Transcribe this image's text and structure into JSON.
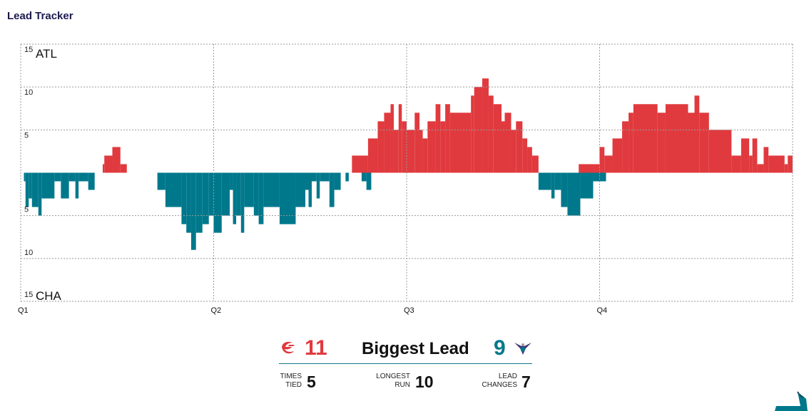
{
  "header": {
    "title": "Lead Tracker"
  },
  "colors": {
    "atl": "#e03a3e",
    "cha": "#00788c",
    "grid": "#9a9a9a",
    "title": "#1d1a4f"
  },
  "chart_data": {
    "type": "area",
    "x_domain": [
      0,
      48
    ],
    "xlabel": "",
    "quarters": [
      {
        "label": "Q1",
        "start": 0
      },
      {
        "label": "Q2",
        "start": 12
      },
      {
        "label": "Q3",
        "start": 24
      },
      {
        "label": "Q4",
        "start": 36
      }
    ],
    "y_range": [
      -15,
      15
    ],
    "y_ticks": [
      {
        "value": 15,
        "label": "15"
      },
      {
        "value": 10,
        "label": "10"
      },
      {
        "value": 5,
        "label": "5"
      },
      {
        "value": -5,
        "label": "5"
      },
      {
        "value": -10,
        "label": "10"
      },
      {
        "value": -15,
        "label": "15"
      }
    ],
    "team_labels": {
      "top": "ATL",
      "bottom": "CHA"
    },
    "grid": true,
    "series": [
      {
        "team": "ATL",
        "segments": [
          [
            5.1,
            5.2,
            1
          ],
          [
            5.2,
            5.7,
            2
          ],
          [
            5.7,
            6.2,
            3
          ],
          [
            6.2,
            6.6,
            1
          ],
          [
            20.6,
            21.6,
            2
          ],
          [
            21.6,
            22.2,
            4
          ],
          [
            22.2,
            22.6,
            6
          ],
          [
            22.6,
            23.0,
            7
          ],
          [
            23.0,
            23.2,
            8
          ],
          [
            23.2,
            23.5,
            5
          ],
          [
            23.5,
            23.7,
            8
          ],
          [
            23.7,
            24.0,
            6
          ],
          [
            24.0,
            24.5,
            5
          ],
          [
            24.5,
            24.8,
            7
          ],
          [
            24.8,
            25.0,
            5
          ],
          [
            25.0,
            25.3,
            4
          ],
          [
            25.3,
            25.8,
            6
          ],
          [
            25.8,
            26.1,
            8
          ],
          [
            26.1,
            26.4,
            6
          ],
          [
            26.4,
            26.7,
            8
          ],
          [
            26.7,
            28.0,
            7
          ],
          [
            28.0,
            28.2,
            9
          ],
          [
            28.2,
            28.7,
            10
          ],
          [
            28.7,
            29.1,
            11
          ],
          [
            29.1,
            29.4,
            9
          ],
          [
            29.4,
            29.9,
            8
          ],
          [
            29.9,
            30.1,
            6
          ],
          [
            30.1,
            30.5,
            7
          ],
          [
            30.5,
            30.8,
            5
          ],
          [
            30.8,
            31.2,
            6
          ],
          [
            31.2,
            31.5,
            4
          ],
          [
            31.5,
            31.8,
            3
          ],
          [
            31.8,
            32.2,
            2
          ],
          [
            34.7,
            36.0,
            1
          ],
          [
            36.0,
            36.3,
            3
          ],
          [
            36.3,
            36.8,
            2
          ],
          [
            36.8,
            37.4,
            4
          ],
          [
            37.4,
            37.8,
            6
          ],
          [
            37.8,
            38.1,
            7
          ],
          [
            38.1,
            39.6,
            8
          ],
          [
            39.6,
            40.1,
            7
          ],
          [
            40.1,
            41.5,
            8
          ],
          [
            41.5,
            41.9,
            7
          ],
          [
            41.9,
            42.2,
            9
          ],
          [
            42.2,
            42.8,
            7
          ],
          [
            42.8,
            44.2,
            5
          ],
          [
            44.2,
            44.8,
            2
          ],
          [
            44.8,
            45.3,
            4
          ],
          [
            45.3,
            45.5,
            2
          ],
          [
            45.5,
            45.8,
            4
          ],
          [
            45.8,
            46.2,
            1
          ],
          [
            46.2,
            46.5,
            3
          ],
          [
            46.5,
            47.5,
            2
          ],
          [
            47.5,
            47.7,
            1
          ],
          [
            47.7,
            48.0,
            2
          ]
        ]
      },
      {
        "team": "CHA",
        "segments": [
          [
            0.2,
            0.3,
            -1
          ],
          [
            0.3,
            0.5,
            -4
          ],
          [
            0.5,
            0.7,
            -3
          ],
          [
            0.7,
            1.1,
            -4
          ],
          [
            1.1,
            1.3,
            -5
          ],
          [
            1.3,
            2.1,
            -3
          ],
          [
            2.1,
            2.5,
            -1
          ],
          [
            2.5,
            3.0,
            -3
          ],
          [
            3.0,
            3.4,
            -1
          ],
          [
            3.4,
            3.6,
            -3
          ],
          [
            3.6,
            4.2,
            -1
          ],
          [
            4.2,
            4.6,
            -2
          ],
          [
            8.5,
            9.0,
            -2
          ],
          [
            9.0,
            10.0,
            -4
          ],
          [
            10.0,
            10.3,
            -6
          ],
          [
            10.3,
            10.6,
            -7
          ],
          [
            10.6,
            10.9,
            -9
          ],
          [
            10.9,
            11.3,
            -7
          ],
          [
            11.3,
            11.7,
            -6
          ],
          [
            11.7,
            12.0,
            -5
          ],
          [
            12.0,
            12.5,
            -7
          ],
          [
            12.5,
            13.0,
            -5
          ],
          [
            13.0,
            13.2,
            -2
          ],
          [
            13.2,
            13.4,
            -6
          ],
          [
            13.4,
            13.7,
            -5
          ],
          [
            13.7,
            13.9,
            -7
          ],
          [
            13.9,
            14.5,
            -4
          ],
          [
            14.5,
            14.8,
            -5
          ],
          [
            14.8,
            15.1,
            -6
          ],
          [
            15.1,
            16.1,
            -4
          ],
          [
            16.1,
            17.1,
            -6
          ],
          [
            17.1,
            17.7,
            -4
          ],
          [
            17.7,
            17.9,
            -2
          ],
          [
            17.9,
            18.1,
            -4
          ],
          [
            18.1,
            18.4,
            -1
          ],
          [
            18.4,
            18.6,
            -3
          ],
          [
            18.6,
            19.2,
            -1
          ],
          [
            19.2,
            19.5,
            -4
          ],
          [
            19.5,
            19.9,
            -2
          ],
          [
            20.2,
            20.4,
            -1
          ],
          [
            21.2,
            21.5,
            -1
          ],
          [
            21.5,
            21.8,
            -2
          ],
          [
            32.2,
            33.0,
            -2
          ],
          [
            33.0,
            33.2,
            -3
          ],
          [
            33.2,
            33.6,
            -2
          ],
          [
            33.6,
            34.0,
            -4
          ],
          [
            34.0,
            34.8,
            -5
          ],
          [
            34.8,
            35.6,
            -3
          ],
          [
            35.6,
            36.4,
            -1
          ]
        ]
      }
    ]
  },
  "summary": {
    "atl_biggest_lead": "11",
    "biggest_lead_label": "Biggest Lead",
    "cha_biggest_lead": "9",
    "times_tied_label_1": "TIMES",
    "times_tied_label_2": "TIED",
    "times_tied": "5",
    "longest_run_label_1": "LONGEST",
    "longest_run_label_2": "RUN",
    "longest_run": "10",
    "lead_changes_label_1": "LEAD",
    "lead_changes_label_2": "CHANGES",
    "lead_changes": "7",
    "atl_logo_icon": "hawks-logo-icon",
    "cha_logo_icon": "hornets-logo-icon",
    "corner_icon": "league-corner-logo-icon"
  }
}
